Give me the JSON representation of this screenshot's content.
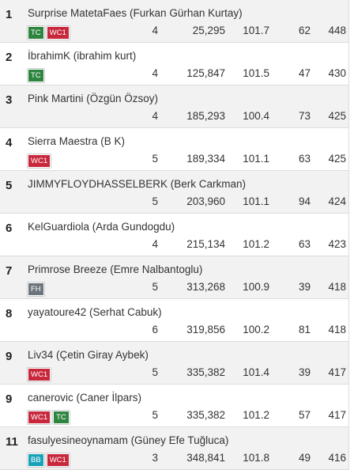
{
  "rows": [
    {
      "rank": "1",
      "name": "Surprise MatetaFaes (Furkan Gürhan Kurtay)",
      "chips": [
        {
          "label": "TC",
          "color": "#2e8540"
        },
        {
          "label": "WC1",
          "color": "#c8283c"
        }
      ],
      "cells": [
        "4",
        "25,295",
        "101.7",
        "62",
        "448"
      ]
    },
    {
      "rank": "2",
      "name": "İbrahimK (ibrahim kurt)",
      "chips": [
        {
          "label": "TC",
          "color": "#2e8540"
        }
      ],
      "cells": [
        "4",
        "125,847",
        "101.5",
        "47",
        "430"
      ]
    },
    {
      "rank": "3",
      "name": "Pink Martini (Özgün Özsoy)",
      "chips": [],
      "cells": [
        "4",
        "185,293",
        "100.4",
        "73",
        "425"
      ]
    },
    {
      "rank": "4",
      "name": "Sierra Maestra (B K)",
      "chips": [
        {
          "label": "WC1",
          "color": "#c8283c"
        }
      ],
      "cells": [
        "5",
        "189,334",
        "101.1",
        "63",
        "425"
      ]
    },
    {
      "rank": "5",
      "name": "JIMMYFLOYDHASSELBERK (Berk Carkman)",
      "chips": [],
      "cells": [
        "5",
        "203,960",
        "101.1",
        "94",
        "424"
      ]
    },
    {
      "rank": "6",
      "name": "KelGuardiola (Arda Gundogdu)",
      "chips": [],
      "cells": [
        "4",
        "215,134",
        "101.2",
        "63",
        "423"
      ]
    },
    {
      "rank": "7",
      "name": "Primrose Breeze (Emre Nalbantoglu)",
      "chips": [
        {
          "label": "FH",
          "color": "#6c757d"
        }
      ],
      "cells": [
        "5",
        "313,268",
        "100.9",
        "39",
        "418"
      ]
    },
    {
      "rank": "8",
      "name": "yayatoure42 (Serhat Cabuk)",
      "chips": [],
      "cells": [
        "6",
        "319,856",
        "100.2",
        "81",
        "418"
      ]
    },
    {
      "rank": "9",
      "name": "Liv34 (Çetin Giray Aybek)",
      "chips": [
        {
          "label": "WC1",
          "color": "#c8283c"
        }
      ],
      "cells": [
        "5",
        "335,382",
        "101.4",
        "39",
        "417"
      ]
    },
    {
      "rank": "9",
      "name": "canerovic (Caner İlpars)",
      "chips": [
        {
          "label": "WC1",
          "color": "#c8283c"
        },
        {
          "label": "TC",
          "color": "#2e8540"
        }
      ],
      "cells": [
        "5",
        "335,382",
        "101.2",
        "57",
        "417"
      ]
    },
    {
      "rank": "11",
      "name": "fasulyesineoynamam (Güney Efe Tuğluca)",
      "chips": [
        {
          "label": "BB",
          "color": "#17a2b8"
        },
        {
          "label": "WC1",
          "color": "#c8283c"
        }
      ],
      "cells": [
        "3",
        "348,841",
        "101.8",
        "49",
        "416"
      ]
    }
  ]
}
